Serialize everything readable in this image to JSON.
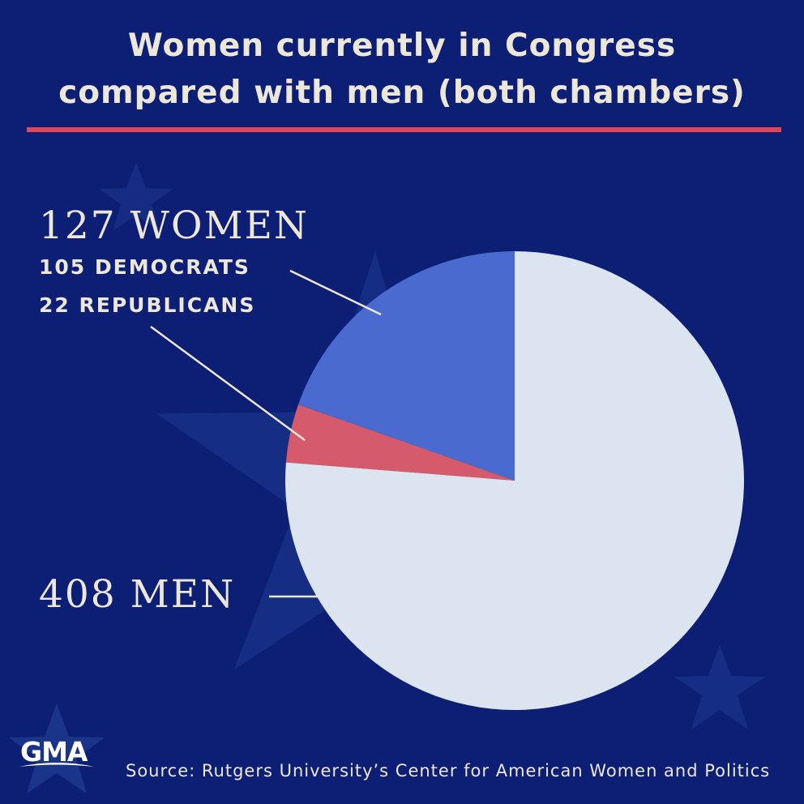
{
  "title": {
    "line1": "Women currently in Congress",
    "line2": "compared with men (both chambers)"
  },
  "chart_data": {
    "type": "pie",
    "title": "Women currently in Congress compared with men (both chambers)",
    "slices": [
      {
        "label": "105 DEMOCRATS",
        "value": 105,
        "color": "#4a6ad0"
      },
      {
        "label": "22 REPUBLICANS",
        "value": 22,
        "color": "#d55a6b"
      },
      {
        "label": "408 MEN",
        "value": 408,
        "color": "#dce4f0"
      }
    ],
    "total": 535,
    "start_angle": "12 o'clock",
    "direction": "counterclockwise"
  },
  "labels": {
    "women": "127 WOMEN",
    "democrats": "105 DEMOCRATS",
    "republicans": "22 REPUBLICANS",
    "men": "408 MEN"
  },
  "source": "Source: Rutgers University’s Center for American Women and Politics",
  "logo": {
    "text": "GMA",
    "icon": "star-logo-icon"
  },
  "colors": {
    "background": "#0c1f74",
    "accent_rule": "#e0475a",
    "text": "#ede7da"
  }
}
